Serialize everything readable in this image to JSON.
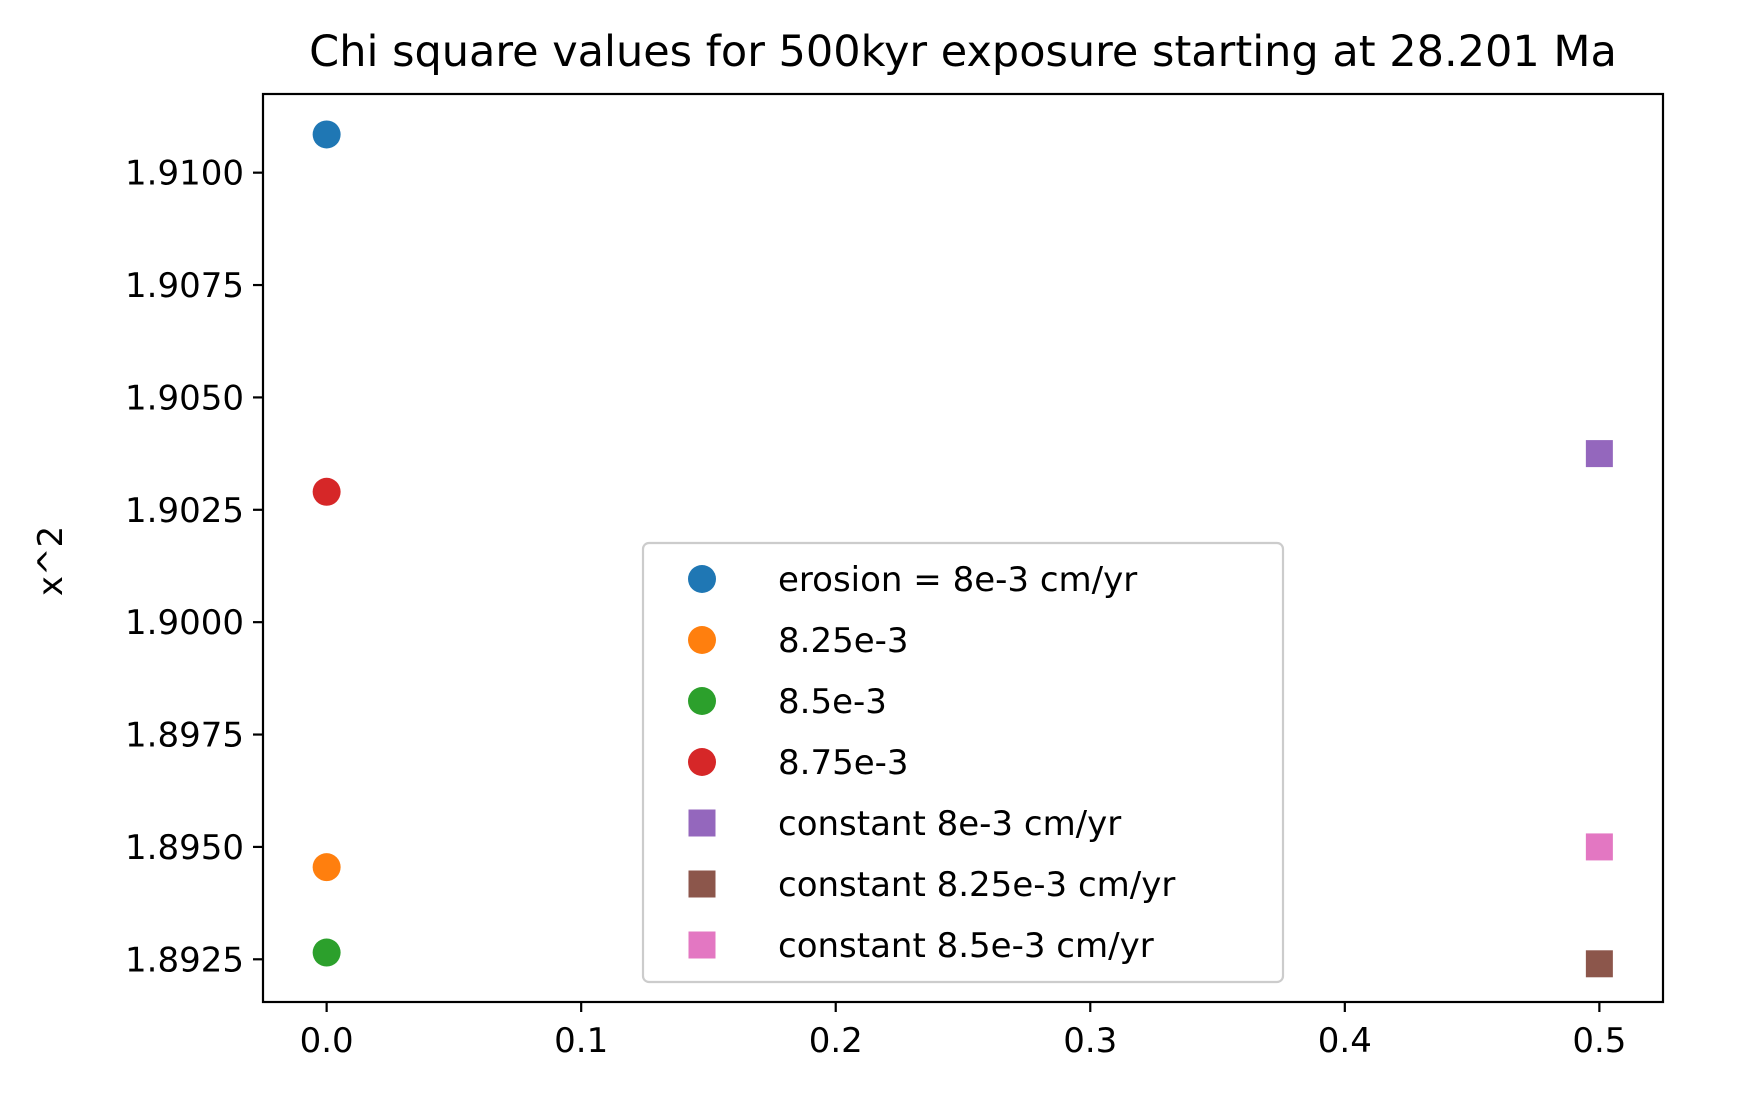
{
  "chart_data": {
    "type": "scatter",
    "title": "Chi square values for 500kyr exposure starting at 28.201 Ma",
    "xlabel": "",
    "ylabel": "x^2",
    "xlim": [
      -0.025,
      0.525
    ],
    "ylim": [
      1.89155,
      1.91175
    ],
    "x_ticks": [
      0.0,
      0.1,
      0.2,
      0.3,
      0.4,
      0.5
    ],
    "x_tick_labels": [
      "0.0",
      "0.1",
      "0.2",
      "0.3",
      "0.4",
      "0.5"
    ],
    "y_ticks": [
      1.8925,
      1.895,
      1.8975,
      1.9,
      1.9025,
      1.905,
      1.9075,
      1.91
    ],
    "y_tick_labels": [
      "1.8925",
      "1.8950",
      "1.8975",
      "1.9000",
      "1.9025",
      "1.9050",
      "1.9075",
      "1.9100"
    ],
    "grid": false,
    "legend_position": "lower-center",
    "series": [
      {
        "name": "erosion = 8e-3 cm/yr",
        "marker": "circle",
        "color": "#1f77b4",
        "x": [
          0.0
        ],
        "y": [
          1.91085
        ]
      },
      {
        "name": "8.25e-3",
        "marker": "circle",
        "color": "#ff7f0e",
        "x": [
          0.0
        ],
        "y": [
          1.89455
        ]
      },
      {
        "name": "8.5e-3",
        "marker": "circle",
        "color": "#2ca02c",
        "x": [
          0.0
        ],
        "y": [
          1.89265
        ]
      },
      {
        "name": "8.75e-3",
        "marker": "circle",
        "color": "#d62728",
        "x": [
          0.0
        ],
        "y": [
          1.9029
        ]
      },
      {
        "name": "constant 8e-3 cm/yr",
        "marker": "square",
        "color": "#9467bd",
        "x": [
          0.5
        ],
        "y": [
          1.90375
        ]
      },
      {
        "name": "constant 8.25e-3 cm/yr",
        "marker": "square",
        "color": "#8c564b",
        "x": [
          0.5
        ],
        "y": [
          1.8924
        ]
      },
      {
        "name": "constant 8.5e-3 cm/yr",
        "marker": "square",
        "color": "#e377c2",
        "x": [
          0.5
        ],
        "y": [
          1.895
        ]
      }
    ]
  }
}
